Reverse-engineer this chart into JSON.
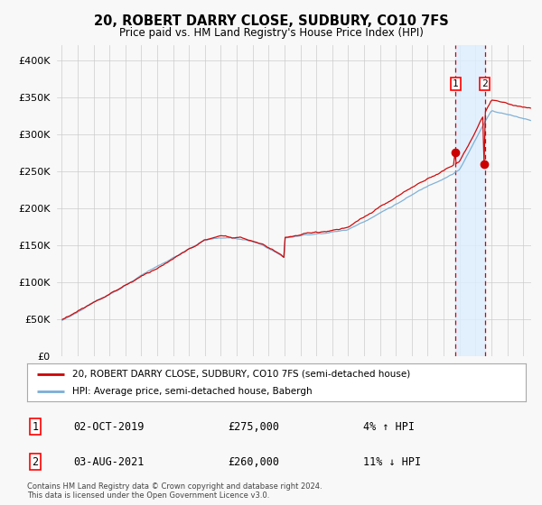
{
  "title": "20, ROBERT DARRY CLOSE, SUDBURY, CO10 7FS",
  "subtitle": "Price paid vs. HM Land Registry's House Price Index (HPI)",
  "legend_label1": "20, ROBERT DARRY CLOSE, SUDBURY, CO10 7FS (semi-detached house)",
  "legend_label2": "HPI: Average price, semi-detached house, Babergh",
  "sale1_date": "02-OCT-2019",
  "sale1_price": 275000,
  "sale1_pct": "4% ↑ HPI",
  "sale2_date": "03-AUG-2021",
  "sale2_price": 260000,
  "sale2_pct": "11% ↓ HPI",
  "footer": "Contains HM Land Registry data © Crown copyright and database right 2024.\nThis data is licensed under the Open Government Licence v3.0.",
  "line1_color": "#cc0000",
  "line2_color": "#7aaed6",
  "shaded_color": "#ddeeff",
  "grid_color": "#cccccc",
  "background_color": "#f8f8f8",
  "ylim": [
    0,
    420000
  ],
  "yticks": [
    0,
    50000,
    100000,
    150000,
    200000,
    250000,
    300000,
    350000,
    400000
  ],
  "vline1_year": 2019.75,
  "vline2_year": 2021.58,
  "sale1_year": 2019.75,
  "sale2_year": 2021.58,
  "sale1_price_val": 275000,
  "sale2_price_val": 260000
}
